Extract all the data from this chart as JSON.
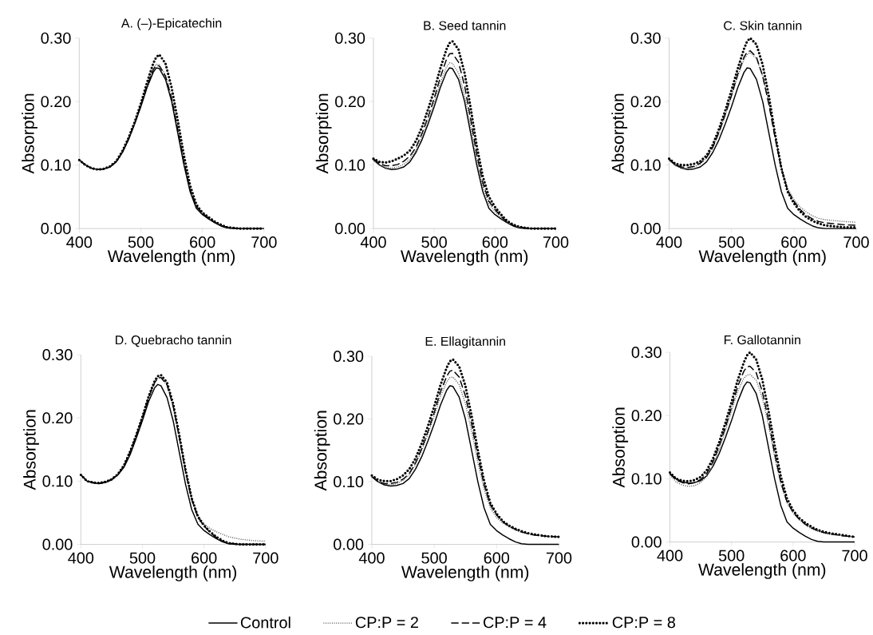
{
  "chart_data": [
    {
      "type": "line",
      "title": "A. (–)-Epicatechin",
      "xlabel": "Wavelength (nm)",
      "ylabel": "Absorption",
      "xlim": [
        400,
        700
      ],
      "ylim": [
        0,
        0.3
      ],
      "xticks": [
        400,
        500,
        600,
        700
      ],
      "yticks": [
        {
          "value": 0,
          "label": "0.00"
        },
        {
          "value": 0.1,
          "label": "0.10"
        },
        {
          "value": 0.2,
          "label": "0.20"
        },
        {
          "value": 0.3,
          "label": "0.30"
        }
      ],
      "x": [
        400,
        410,
        420,
        430,
        440,
        450,
        460,
        470,
        480,
        490,
        500,
        510,
        520,
        525,
        530,
        540,
        550,
        560,
        570,
        580,
        590,
        600,
        610,
        620,
        630,
        640,
        650,
        660,
        680,
        700
      ],
      "series": [
        {
          "color": "#000000",
          "line_style": "solid",
          "values": [
            0.108,
            0.1,
            0.095,
            0.093,
            0.094,
            0.097,
            0.105,
            0.12,
            0.14,
            0.165,
            0.192,
            0.222,
            0.246,
            0.253,
            0.252,
            0.235,
            0.2,
            0.15,
            0.1,
            0.058,
            0.032,
            0.022,
            0.015,
            0.009,
            0.004,
            0.001,
            0,
            0,
            0,
            0
          ]
        },
        {
          "color": "#555555",
          "line_style": "dotted",
          "values": [
            0.108,
            0.1,
            0.095,
            0.093,
            0.094,
            0.097,
            0.106,
            0.121,
            0.142,
            0.167,
            0.195,
            0.226,
            0.252,
            0.259,
            0.258,
            0.242,
            0.207,
            0.158,
            0.106,
            0.062,
            0.036,
            0.024,
            0.017,
            0.01,
            0.005,
            0.002,
            0.001,
            0,
            0,
            0
          ]
        },
        {
          "color": "#000000",
          "line_style": "dashed",
          "values": [
            0.108,
            0.1,
            0.095,
            0.093,
            0.094,
            0.097,
            0.105,
            0.12,
            0.141,
            0.166,
            0.194,
            0.224,
            0.25,
            0.257,
            0.256,
            0.24,
            0.205,
            0.155,
            0.104,
            0.061,
            0.035,
            0.024,
            0.016,
            0.01,
            0.005,
            0.002,
            0.001,
            0,
            0,
            0
          ]
        },
        {
          "color": "#000000",
          "line_style": "dotted",
          "values": [
            0.108,
            0.1,
            0.095,
            0.093,
            0.094,
            0.098,
            0.106,
            0.122,
            0.143,
            0.168,
            0.197,
            0.23,
            0.26,
            0.27,
            0.274,
            0.26,
            0.222,
            0.17,
            0.115,
            0.068,
            0.038,
            0.025,
            0.018,
            0.011,
            0.006,
            0.002,
            0.001,
            0,
            0,
            0
          ]
        }
      ]
    },
    {
      "type": "line",
      "title": "B. Seed tannin",
      "xlabel": "Wavelength (nm)",
      "ylabel": "Absorption",
      "xlim": [
        400,
        700
      ],
      "ylim": [
        0,
        0.3
      ],
      "xticks": [
        400,
        500,
        600,
        700
      ],
      "yticks": [
        {
          "value": 0,
          "label": "0.00"
        },
        {
          "value": 0.1,
          "label": "0.10"
        },
        {
          "value": 0.2,
          "label": "0.20"
        },
        {
          "value": 0.3,
          "label": "0.30"
        }
      ],
      "x": [
        400,
        410,
        420,
        430,
        440,
        450,
        460,
        470,
        480,
        490,
        500,
        510,
        520,
        525,
        530,
        540,
        550,
        560,
        570,
        580,
        590,
        600,
        610,
        620,
        630,
        640,
        650,
        660,
        680,
        700
      ],
      "series": [
        {
          "color": "#000000",
          "line_style": "solid",
          "values": [
            0.108,
            0.1,
            0.095,
            0.093,
            0.094,
            0.097,
            0.105,
            0.12,
            0.14,
            0.165,
            0.192,
            0.222,
            0.246,
            0.253,
            0.252,
            0.235,
            0.2,
            0.15,
            0.1,
            0.058,
            0.032,
            0.022,
            0.015,
            0.009,
            0.004,
            0.001,
            0,
            0,
            0,
            0
          ]
        },
        {
          "color": "#555555",
          "line_style": "dotted",
          "values": [
            0.108,
            0.1,
            0.096,
            0.095,
            0.097,
            0.101,
            0.109,
            0.124,
            0.145,
            0.17,
            0.198,
            0.229,
            0.254,
            0.261,
            0.26,
            0.245,
            0.21,
            0.16,
            0.108,
            0.066,
            0.039,
            0.027,
            0.017,
            0.009,
            0.004,
            0.002,
            0,
            0,
            0,
            0
          ]
        },
        {
          "color": "#000000",
          "line_style": "dashed",
          "values": [
            0.11,
            0.102,
            0.099,
            0.099,
            0.101,
            0.106,
            0.114,
            0.128,
            0.15,
            0.176,
            0.205,
            0.238,
            0.266,
            0.275,
            0.276,
            0.262,
            0.225,
            0.172,
            0.117,
            0.072,
            0.043,
            0.03,
            0.019,
            0.01,
            0.005,
            0.002,
            0.001,
            0,
            0,
            0
          ]
        },
        {
          "color": "#000000",
          "line_style": "dotted",
          "values": [
            0.11,
            0.105,
            0.104,
            0.106,
            0.11,
            0.115,
            0.123,
            0.138,
            0.16,
            0.188,
            0.218,
            0.252,
            0.282,
            0.292,
            0.295,
            0.282,
            0.245,
            0.19,
            0.13,
            0.082,
            0.05,
            0.034,
            0.022,
            0.012,
            0.006,
            0.003,
            0.001,
            0,
            0,
            0
          ]
        }
      ]
    },
    {
      "type": "line",
      "title": "C. Skin tannin",
      "xlabel": "Wavelength (nm)",
      "ylabel": "Absorption",
      "xlim": [
        400,
        700
      ],
      "ylim": [
        0,
        0.3
      ],
      "xticks": [
        400,
        500,
        600,
        700
      ],
      "yticks": [
        {
          "value": 0,
          "label": "0.00"
        },
        {
          "value": 0.1,
          "label": "0.10"
        },
        {
          "value": 0.2,
          "label": "0.20"
        },
        {
          "value": 0.3,
          "label": "0.30"
        }
      ],
      "x": [
        400,
        410,
        420,
        430,
        440,
        450,
        460,
        470,
        480,
        490,
        500,
        510,
        520,
        525,
        530,
        540,
        550,
        560,
        570,
        580,
        590,
        600,
        610,
        620,
        630,
        640,
        650,
        660,
        680,
        700
      ],
      "series": [
        {
          "color": "#000000",
          "line_style": "solid",
          "values": [
            0.108,
            0.1,
            0.095,
            0.093,
            0.094,
            0.097,
            0.105,
            0.12,
            0.14,
            0.165,
            0.192,
            0.222,
            0.246,
            0.253,
            0.252,
            0.235,
            0.2,
            0.15,
            0.1,
            0.058,
            0.032,
            0.022,
            0.015,
            0.009,
            0.004,
            0.001,
            0,
            0,
            0,
            0
          ]
        },
        {
          "color": "#555555",
          "line_style": "dotted",
          "values": [
            0.108,
            0.099,
            0.096,
            0.095,
            0.097,
            0.102,
            0.111,
            0.127,
            0.15,
            0.178,
            0.208,
            0.24,
            0.266,
            0.274,
            0.277,
            0.268,
            0.24,
            0.197,
            0.145,
            0.097,
            0.063,
            0.046,
            0.034,
            0.026,
            0.02,
            0.016,
            0.014,
            0.013,
            0.011,
            0.01
          ]
        },
        {
          "color": "#000000",
          "line_style": "dashed",
          "values": [
            0.11,
            0.1,
            0.097,
            0.096,
            0.098,
            0.103,
            0.112,
            0.128,
            0.152,
            0.18,
            0.21,
            0.243,
            0.27,
            0.278,
            0.28,
            0.27,
            0.24,
            0.195,
            0.142,
            0.094,
            0.06,
            0.043,
            0.03,
            0.021,
            0.015,
            0.011,
            0.009,
            0.008,
            0.006,
            0.005
          ]
        },
        {
          "color": "#000000",
          "line_style": "dotted",
          "values": [
            0.11,
            0.102,
            0.1,
            0.1,
            0.102,
            0.106,
            0.115,
            0.132,
            0.157,
            0.186,
            0.218,
            0.252,
            0.283,
            0.295,
            0.3,
            0.29,
            0.258,
            0.208,
            0.148,
            0.095,
            0.058,
            0.04,
            0.027,
            0.018,
            0.012,
            0.008,
            0.005,
            0.004,
            0.002,
            0.002
          ]
        }
      ]
    },
    {
      "type": "line",
      "title": "D. Quebracho tannin",
      "xlabel": "Wavelength (nm)",
      "ylabel": "Absorption",
      "xlim": [
        400,
        700
      ],
      "ylim": [
        0,
        0.3
      ],
      "xticks": [
        400,
        500,
        600,
        700
      ],
      "yticks": [
        {
          "value": 0,
          "label": "0.00"
        },
        {
          "value": 0.1,
          "label": "0.10"
        },
        {
          "value": 0.2,
          "label": "0.20"
        },
        {
          "value": 0.3,
          "label": "0.30"
        }
      ],
      "x": [
        400,
        410,
        420,
        430,
        440,
        450,
        460,
        470,
        480,
        490,
        500,
        510,
        520,
        525,
        530,
        540,
        550,
        560,
        570,
        580,
        590,
        600,
        610,
        620,
        630,
        640,
        650,
        660,
        680,
        700
      ],
      "series": [
        {
          "color": "#000000",
          "line_style": "solid",
          "values": [
            0.11,
            0.1,
            0.097,
            0.096,
            0.098,
            0.102,
            0.11,
            0.122,
            0.142,
            0.168,
            0.196,
            0.226,
            0.248,
            0.253,
            0.251,
            0.232,
            0.195,
            0.145,
            0.095,
            0.055,
            0.032,
            0.022,
            0.015,
            0.009,
            0.004,
            0.001,
            0,
            0,
            0,
            0
          ]
        },
        {
          "color": "#555555",
          "line_style": "dotted",
          "values": [
            0.11,
            0.1,
            0.098,
            0.097,
            0.099,
            0.103,
            0.11,
            0.124,
            0.146,
            0.172,
            0.201,
            0.232,
            0.257,
            0.263,
            0.264,
            0.252,
            0.218,
            0.168,
            0.116,
            0.072,
            0.046,
            0.032,
            0.025,
            0.02,
            0.016,
            0.012,
            0.01,
            0.008,
            0.006,
            0.005
          ]
        },
        {
          "color": "#000000",
          "line_style": "dashed",
          "values": [
            0.11,
            0.1,
            0.098,
            0.097,
            0.099,
            0.103,
            0.11,
            0.124,
            0.146,
            0.172,
            0.201,
            0.232,
            0.256,
            0.263,
            0.264,
            0.252,
            0.218,
            0.168,
            0.115,
            0.071,
            0.043,
            0.029,
            0.019,
            0.011,
            0.005,
            0.002,
            0.001,
            0,
            0,
            0
          ]
        },
        {
          "color": "#000000",
          "line_style": "dotted",
          "values": [
            0.11,
            0.1,
            0.098,
            0.097,
            0.099,
            0.103,
            0.111,
            0.125,
            0.147,
            0.173,
            0.202,
            0.234,
            0.259,
            0.266,
            0.268,
            0.256,
            0.222,
            0.172,
            0.118,
            0.073,
            0.044,
            0.03,
            0.02,
            0.012,
            0.006,
            0.002,
            0.001,
            0,
            0,
            0
          ]
        }
      ]
    },
    {
      "type": "line",
      "title": "E. Ellagitannin",
      "xlabel": "Wavelength (nm)",
      "ylabel": "Absorption",
      "xlim": [
        400,
        700
      ],
      "ylim": [
        0,
        0.3
      ],
      "xticks": [
        400,
        500,
        600,
        700
      ],
      "yticks": [
        {
          "value": 0,
          "label": "0.00"
        },
        {
          "value": 0.1,
          "label": "0.10"
        },
        {
          "value": 0.2,
          "label": "0.20"
        },
        {
          "value": 0.3,
          "label": "0.30"
        }
      ],
      "legend": "bottom",
      "x": [
        400,
        410,
        420,
        430,
        440,
        450,
        460,
        470,
        480,
        490,
        500,
        510,
        520,
        525,
        530,
        540,
        550,
        560,
        570,
        580,
        590,
        600,
        610,
        620,
        630,
        640,
        650,
        660,
        680,
        700
      ],
      "series": [
        {
          "name": "Control",
          "color": "#000000",
          "line_style": "solid",
          "values": [
            0.108,
            0.1,
            0.095,
            0.093,
            0.094,
            0.097,
            0.105,
            0.12,
            0.14,
            0.165,
            0.192,
            0.222,
            0.246,
            0.253,
            0.252,
            0.235,
            0.2,
            0.15,
            0.1,
            0.058,
            0.032,
            0.022,
            0.015,
            0.009,
            0.004,
            0.001,
            0,
            0,
            0,
            0
          ]
        },
        {
          "name": "CP:P = 2",
          "color": "#555555",
          "line_style": "dotted",
          "values": [
            0.108,
            0.1,
            0.096,
            0.095,
            0.097,
            0.102,
            0.111,
            0.127,
            0.15,
            0.176,
            0.205,
            0.236,
            0.259,
            0.266,
            0.267,
            0.255,
            0.225,
            0.18,
            0.13,
            0.088,
            0.058,
            0.043,
            0.034,
            0.028,
            0.023,
            0.019,
            0.017,
            0.015,
            0.013,
            0.012
          ]
        },
        {
          "name": "CP:P = 4",
          "color": "#000000",
          "line_style": "dashed",
          "values": [
            0.108,
            0.1,
            0.097,
            0.097,
            0.099,
            0.104,
            0.113,
            0.13,
            0.153,
            0.18,
            0.21,
            0.243,
            0.268,
            0.276,
            0.278,
            0.267,
            0.237,
            0.192,
            0.14,
            0.095,
            0.063,
            0.047,
            0.036,
            0.029,
            0.024,
            0.02,
            0.017,
            0.015,
            0.013,
            0.012
          ]
        },
        {
          "name": "CP:P = 8",
          "color": "#000000",
          "line_style": "dotted",
          "values": [
            0.11,
            0.103,
            0.101,
            0.101,
            0.104,
            0.11,
            0.12,
            0.137,
            0.161,
            0.189,
            0.22,
            0.254,
            0.282,
            0.292,
            0.295,
            0.284,
            0.253,
            0.205,
            0.15,
            0.101,
            0.066,
            0.049,
            0.037,
            0.03,
            0.025,
            0.021,
            0.018,
            0.016,
            0.013,
            0.012
          ]
        }
      ]
    },
    {
      "type": "line",
      "title": "F. Gallotannin",
      "xlabel": "Wavelength (nm)",
      "ylabel": "Absorption",
      "xlim": [
        400,
        700
      ],
      "ylim": [
        0,
        0.3
      ],
      "xticks": [
        400,
        500,
        600,
        700
      ],
      "yticks": [
        {
          "value": 0,
          "label": "0.00"
        },
        {
          "value": 0.1,
          "label": "0.10"
        },
        {
          "value": 0.2,
          "label": "0.20"
        },
        {
          "value": 0.3,
          "label": "0.30"
        }
      ],
      "x": [
        400,
        410,
        420,
        430,
        440,
        450,
        460,
        470,
        480,
        490,
        500,
        510,
        520,
        525,
        530,
        540,
        550,
        560,
        570,
        580,
        590,
        600,
        610,
        620,
        630,
        640,
        650,
        660,
        680,
        700
      ],
      "series": [
        {
          "color": "#000000",
          "line_style": "solid",
          "values": [
            0.108,
            0.1,
            0.095,
            0.093,
            0.094,
            0.097,
            0.105,
            0.12,
            0.14,
            0.165,
            0.192,
            0.222,
            0.246,
            0.253,
            0.252,
            0.235,
            0.2,
            0.15,
            0.1,
            0.058,
            0.032,
            0.022,
            0.015,
            0.009,
            0.004,
            0.001,
            0,
            0,
            0,
            0
          ]
        },
        {
          "color": "#555555",
          "line_style": "dotted",
          "values": [
            0.106,
            0.095,
            0.09,
            0.088,
            0.089,
            0.094,
            0.104,
            0.122,
            0.147,
            0.176,
            0.207,
            0.238,
            0.259,
            0.264,
            0.265,
            0.256,
            0.228,
            0.185,
            0.135,
            0.092,
            0.062,
            0.046,
            0.035,
            0.027,
            0.021,
            0.017,
            0.014,
            0.012,
            0.01,
            0.008
          ]
        },
        {
          "color": "#000000",
          "line_style": "dashed",
          "values": [
            0.108,
            0.098,
            0.094,
            0.092,
            0.094,
            0.099,
            0.109,
            0.127,
            0.152,
            0.181,
            0.213,
            0.246,
            0.27,
            0.277,
            0.278,
            0.268,
            0.238,
            0.193,
            0.14,
            0.095,
            0.064,
            0.047,
            0.036,
            0.028,
            0.022,
            0.018,
            0.015,
            0.013,
            0.01,
            0.008
          ]
        },
        {
          "color": "#000000",
          "line_style": "dotted",
          "values": [
            0.11,
            0.1,
            0.097,
            0.096,
            0.098,
            0.103,
            0.114,
            0.132,
            0.158,
            0.188,
            0.221,
            0.256,
            0.284,
            0.295,
            0.3,
            0.289,
            0.257,
            0.208,
            0.153,
            0.104,
            0.069,
            0.05,
            0.038,
            0.03,
            0.024,
            0.019,
            0.016,
            0.014,
            0.011,
            0.008
          ]
        }
      ]
    }
  ]
}
